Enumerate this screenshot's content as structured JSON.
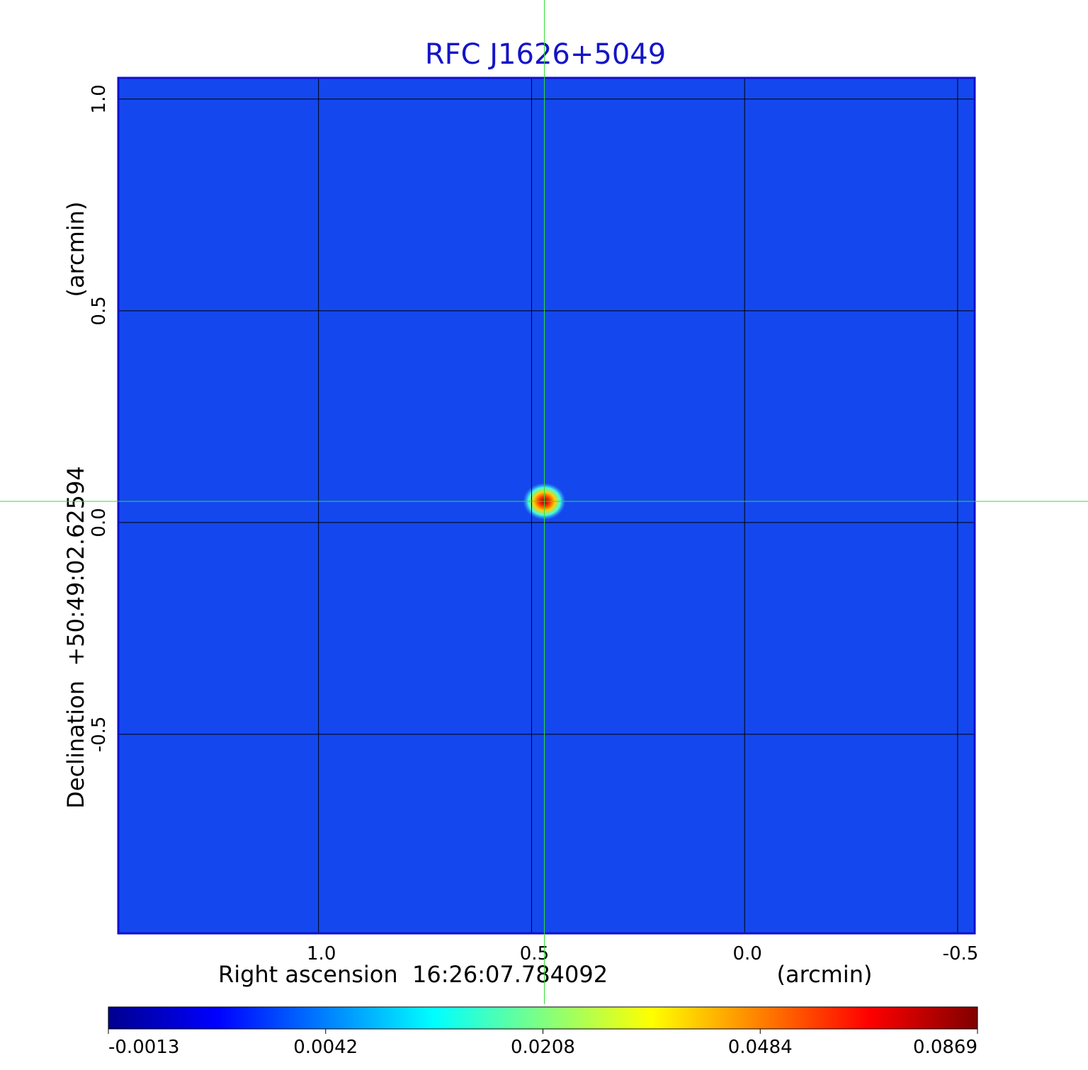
{
  "chart_data": {
    "type": "image",
    "title": "RFC J1626+5049",
    "xlabel": "Right ascension  16:26:07.784092",
    "xunit": "(arcmin)",
    "ylabel": "Declination  +50:49:02.62594",
    "yunit": "(arcmin)",
    "xlim": [
      1.47,
      -0.54
    ],
    "ylim": [
      -0.97,
      1.05
    ],
    "xticks": [
      {
        "value": 1,
        "label": "1.0"
      },
      0.5,
      {
        "value": 0,
        "label": "0.0"
      },
      -0.5
    ],
    "yticks": [
      -0.5,
      {
        "value": 0,
        "label": "0.0"
      },
      0.5,
      {
        "value": 1,
        "label": "1.0"
      }
    ],
    "grid": true,
    "field_color": "#1448ee",
    "marker": {
      "x": 0.47,
      "y": 0.05,
      "color": "#33dd33"
    },
    "colorbar": {
      "ticks": [
        -0.0013,
        0.0042,
        0.0208,
        0.0484,
        0.0869
      ],
      "colors": [
        "#00008f",
        "#0000ff",
        "#0080ff",
        "#00ffff",
        "#80ff80",
        "#ffff00",
        "#ff8000",
        "#ff0000",
        "#800000"
      ]
    }
  }
}
